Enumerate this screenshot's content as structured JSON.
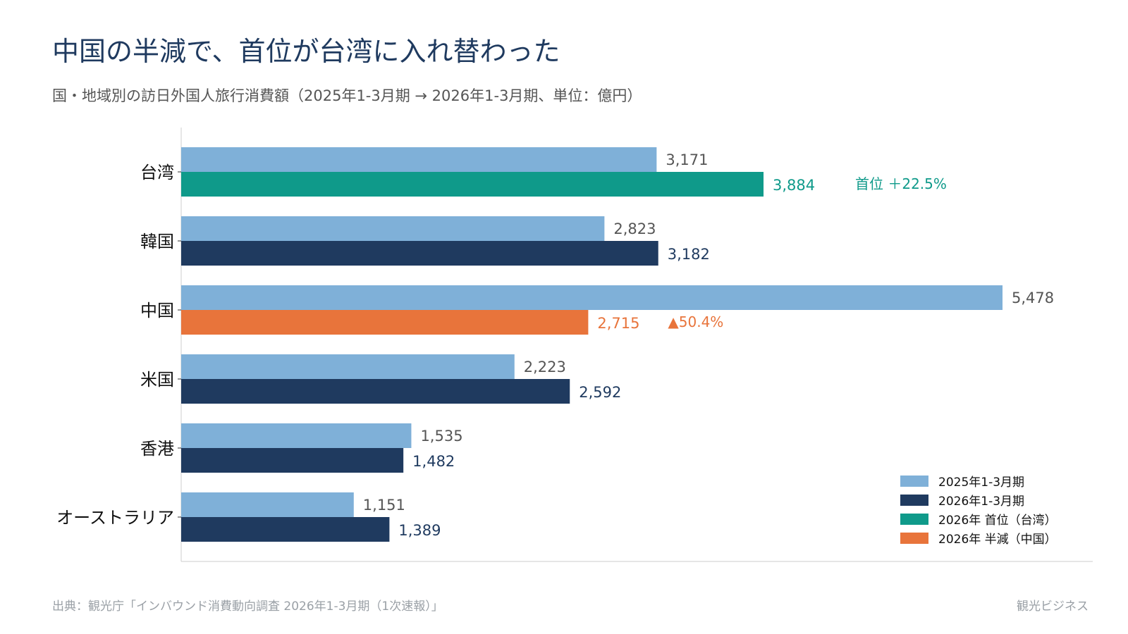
{
  "title": "中国の半減で、首位が台湾に入れ替わった",
  "subtitle": "国・地域別の訪日外国人旅行消費額（2025年1-3月期 → 2026年1-3月期、単位：億円）",
  "source": "出典：観光庁「インバウンド消費動向調査 2026年1-3月期（1次速報）」",
  "brand": "観光ビジネス",
  "colors": {
    "prev": "#7fb0d8",
    "curr": "#1f3a5f",
    "top": "#0f9a8a",
    "half": "#e8743b",
    "prev_label": "#555555",
    "axis": "#cccccc"
  },
  "chart_data": {
    "type": "bar",
    "orientation": "horizontal",
    "categories": [
      "台湾",
      "韓国",
      "中国",
      "米国",
      "香港",
      "オーストラリア"
    ],
    "series": [
      {
        "name": "2025年1-3月期",
        "values": [
          3171,
          2823,
          5478,
          2223,
          1535,
          1151
        ]
      },
      {
        "name": "2026年1-3月期",
        "values": [
          3884,
          3182,
          2715,
          2592,
          1482,
          1389
        ]
      }
    ],
    "value_labels": {
      "prev": [
        "3,171",
        "2,823",
        "5,478",
        "2,223",
        "1,535",
        "1,151"
      ],
      "curr": [
        "3,884",
        "3,182",
        "2,715",
        "2,592",
        "1,482",
        "1,389"
      ]
    },
    "highlights": [
      {
        "category": "台湾",
        "kind": "top",
        "note": "首位 ＋22.5%"
      },
      {
        "category": "中国",
        "kind": "half",
        "note": "▲50.4%"
      }
    ],
    "legend": {
      "position": "bottom-right",
      "entries": [
        {
          "label": "2025年1-3月期",
          "color_key": "prev"
        },
        {
          "label": "2026年1-3月期",
          "color_key": "curr"
        },
        {
          "label": "2026年 首位（台湾）",
          "color_key": "top"
        },
        {
          "label": "2026年 半減（中国）",
          "color_key": "half"
        }
      ]
    },
    "xlim": [
      0,
      6000
    ],
    "grid": false
  }
}
